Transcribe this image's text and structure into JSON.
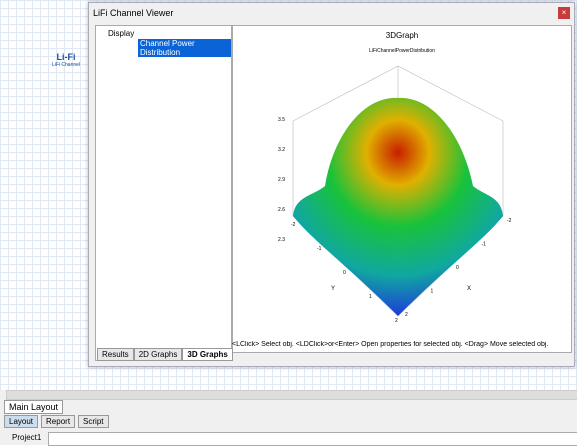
{
  "desktop": {
    "icon_logo": "Li-Fi",
    "icon_label": "LiFi Channel"
  },
  "window": {
    "title": "LiFi Channel Viewer",
    "tree": {
      "root": "Display",
      "child": "Channel Power Distribution"
    },
    "tabs": [
      "Results",
      "2D Graphs",
      "3D Graphs"
    ],
    "graph": {
      "title": "3DGraph",
      "subtitle": "LiFiChannelPowerDistribution",
      "zticks": [
        3.5,
        3.2,
        2.9,
        2.6,
        2.3
      ],
      "yticks": [
        2,
        1,
        0,
        -1,
        -2
      ],
      "xticks": [
        -2,
        -1,
        0,
        1,
        2
      ],
      "ylabel": "Y",
      "xlabel": "X"
    },
    "status": "<LClick> Select obj. <LDClick>or<Enter> Open properties for selected obj. <Drag> Move selected obj."
  },
  "layout_tab": "Main Layout",
  "toolbar": [
    "Layout",
    "Report",
    "Script"
  ],
  "project": "Project1"
}
